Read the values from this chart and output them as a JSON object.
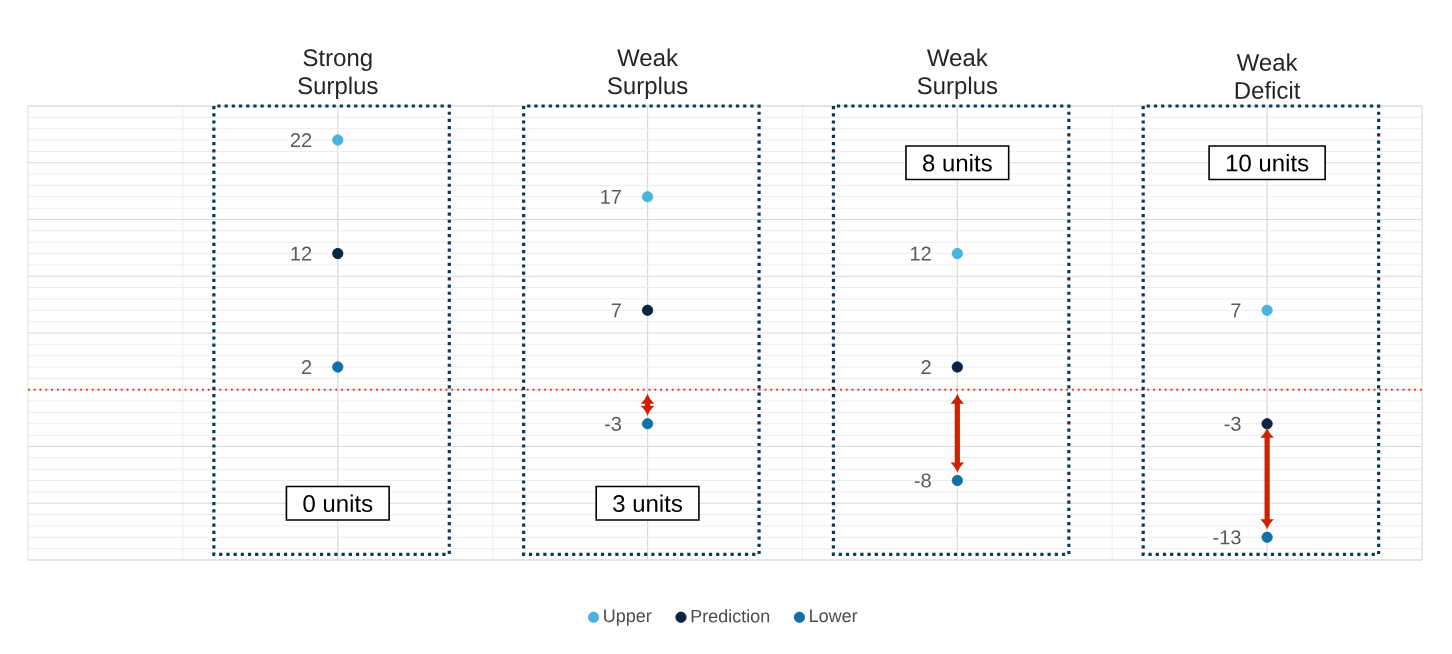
{
  "chart_data": {
    "type": "scatter",
    "categories": [
      "Strong Surplus",
      "Weak Surplus",
      "Weak Surplus",
      "Weak Deficit"
    ],
    "series": [
      {
        "name": "Upper",
        "color": "#4ab3dc",
        "values": [
          22,
          17,
          12,
          7
        ]
      },
      {
        "name": "Prediction",
        "color": "#0b2540",
        "values": [
          12,
          7,
          2,
          -3
        ]
      },
      {
        "name": "Lower",
        "color": "#1170a8",
        "values": [
          2,
          -3,
          -8,
          -13
        ]
      }
    ],
    "ylim": [
      -15,
      25
    ],
    "yticks": [
      {
        "value": -15,
        "label": null
      },
      {
        "value": -10,
        "label": null
      },
      {
        "value": -5,
        "label": null
      },
      {
        "value": 0,
        "label": null
      },
      {
        "value": 5,
        "label": null
      },
      {
        "value": 10,
        "label": null
      },
      {
        "value": 15,
        "label": null
      },
      {
        "value": 20,
        "label": null
      },
      {
        "value": 25,
        "label": null
      }
    ],
    "tick_labels": "x",
    "grid": true,
    "legend": "bottom",
    "marker": "circle",
    "data_labels": true,
    "ref_lines": [
      {
        "axis": "y",
        "value": 0,
        "color": "#ee3322",
        "line_style": "dotted"
      }
    ],
    "annotations": [
      "0 units",
      "3 units",
      "8 units",
      "10 units"
    ]
  }
}
